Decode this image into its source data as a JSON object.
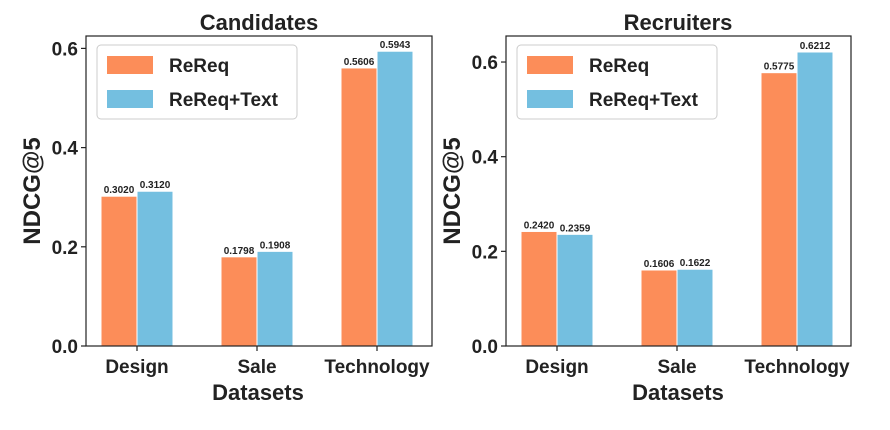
{
  "chart_data": [
    {
      "type": "bar",
      "title": "Candidates",
      "xlabel": "Datasets",
      "ylabel": "NDCG@5",
      "categories": [
        "Design",
        "Sale",
        "Technology"
      ],
      "series": [
        {
          "name": "ReReq",
          "color": "#fc8d59",
          "values": [
            0.302,
            0.1798,
            0.5606
          ],
          "labels": [
            "0.3020",
            "0.1798",
            "0.5606"
          ]
        },
        {
          "name": "ReReq+Text",
          "color": "#74bfe0",
          "values": [
            0.312,
            0.1908,
            0.5943
          ],
          "labels": [
            "0.3120",
            "0.1908",
            "0.5943"
          ]
        }
      ],
      "ylim": [
        0,
        0.625
      ],
      "yticks": [
        0.0,
        0.2,
        0.4,
        0.6
      ],
      "ytick_labels": [
        "0.0",
        "0.2",
        "0.4",
        "0.6"
      ],
      "legend_position": "upper-left",
      "grid": false
    },
    {
      "type": "bar",
      "title": "Recruiters",
      "xlabel": "Datasets",
      "ylabel": "NDCG@5",
      "categories": [
        "Design",
        "Sale",
        "Technology"
      ],
      "series": [
        {
          "name": "ReReq",
          "color": "#fc8d59",
          "values": [
            0.242,
            0.1606,
            0.5775
          ],
          "labels": [
            "0.2420",
            "0.1606",
            "0.5775"
          ]
        },
        {
          "name": "ReReq+Text",
          "color": "#74bfe0",
          "values": [
            0.2359,
            0.1622,
            0.6212
          ],
          "labels": [
            "0.2359",
            "0.1622",
            "0.6212"
          ]
        }
      ],
      "ylim": [
        0,
        0.655
      ],
      "yticks": [
        0.0,
        0.2,
        0.4,
        0.6
      ],
      "ytick_labels": [
        "0.0",
        "0.2",
        "0.4",
        "0.6"
      ],
      "legend_position": "upper-left",
      "grid": false
    }
  ]
}
